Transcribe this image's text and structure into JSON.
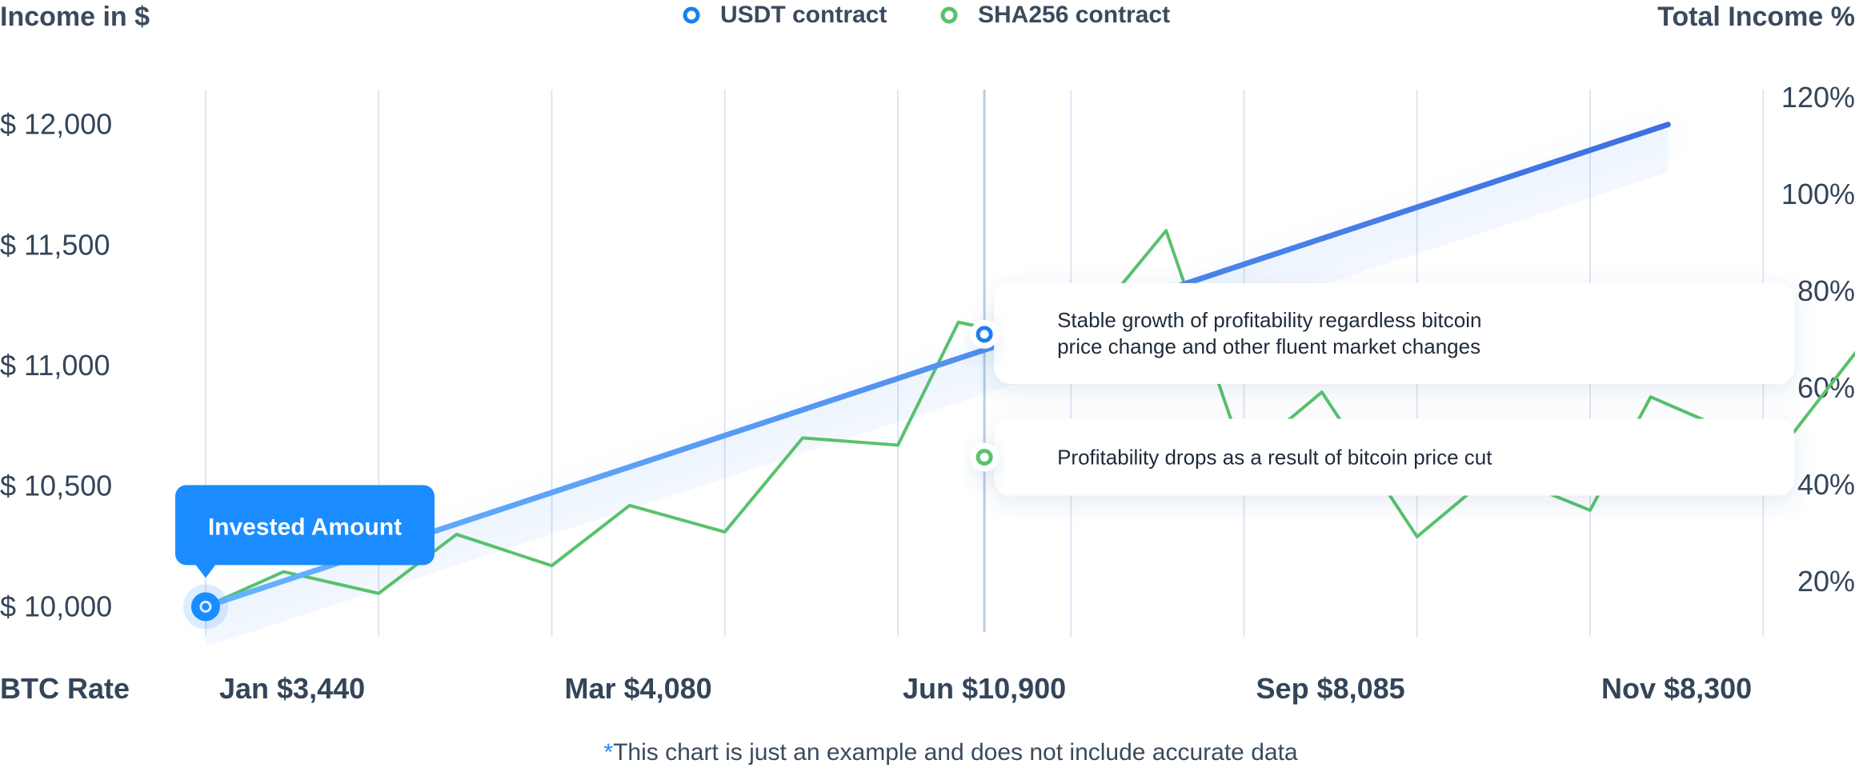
{
  "chart_data": {
    "type": "line",
    "header_left": "Income in $",
    "header_right": "Total Income %",
    "x_axis_label": "BTC Rate",
    "y_left_ticks": [
      "$ 12,000",
      "$ 11,500",
      "$ 11,000",
      "$ 10,500",
      "$ 10,000"
    ],
    "y_left_values": [
      12000,
      11500,
      11000,
      10500,
      10000
    ],
    "y_right_ticks": [
      "120%",
      "100%",
      "80%",
      "60%",
      "40%",
      "20%"
    ],
    "x_labels": [
      "Jan $3,440",
      "Mar $4,080",
      "Jun $10,900",
      "Sep $8,085",
      "Nov $8,300"
    ],
    "x_label_months": [
      0.5,
      2.5,
      4.5,
      6.5,
      8.5
    ],
    "ylim": [
      9875,
      12125
    ],
    "xlim": [
      -0.55,
      8.8
    ],
    "gridlines_months": [
      0,
      1,
      2,
      3,
      4,
      5,
      6,
      7,
      8,
      9,
      10
    ],
    "legend": [
      {
        "label": "USDT contract",
        "color": "#1a7ff0"
      },
      {
        "label": "SHA256 contract",
        "color": "#58c26c"
      }
    ],
    "series": [
      {
        "name": "USDT contract",
        "color": "#3f86e8",
        "x": [
          0,
          8.45
        ],
        "y": [
          10000,
          12000
        ]
      },
      {
        "name": "SHA256 contract",
        "color": "#58c26c",
        "x": [
          0,
          0.45,
          1.0,
          1.45,
          2.0,
          2.45,
          3.0,
          3.45,
          4.0,
          4.35,
          5.0,
          5.55,
          6.0,
          6.45,
          7.0,
          7.45,
          8.0,
          8.35,
          8.8
        ],
        "y": [
          10000,
          10145,
          10055,
          10300,
          10170,
          10420,
          10310,
          10700,
          10670,
          11180,
          11080,
          11560,
          10620,
          10890,
          10290,
          10560,
          10400,
          10870,
          10730
        ]
      },
      {
        "name": "SHA256 contract tail",
        "color": "#58c26c",
        "x": [
          9.0,
          9.8,
          10.45,
          10.55,
          10.9
        ],
        "y": [
          10560,
          11300,
          11200,
          11190,
          11860
        ]
      }
    ],
    "annotations": [
      {
        "text_lines": [
          "Stable growth of profitability regardless bitcoin",
          "price change and other fluent market changes"
        ],
        "x": 4.5,
        "y": 11130,
        "color": "#1a7ff0"
      },
      {
        "text_lines": [
          "Profitability drops as a result of bitcoin price cut"
        ],
        "x": 4.5,
        "y": 10620,
        "color": "#58c26c"
      }
    ],
    "highlight_month": 4.5,
    "callout": {
      "text": "Invested Amount",
      "x": 0,
      "y": 10000
    },
    "footnote_star": "*",
    "footnote": "This chart is just an example and does not include accurate data"
  }
}
